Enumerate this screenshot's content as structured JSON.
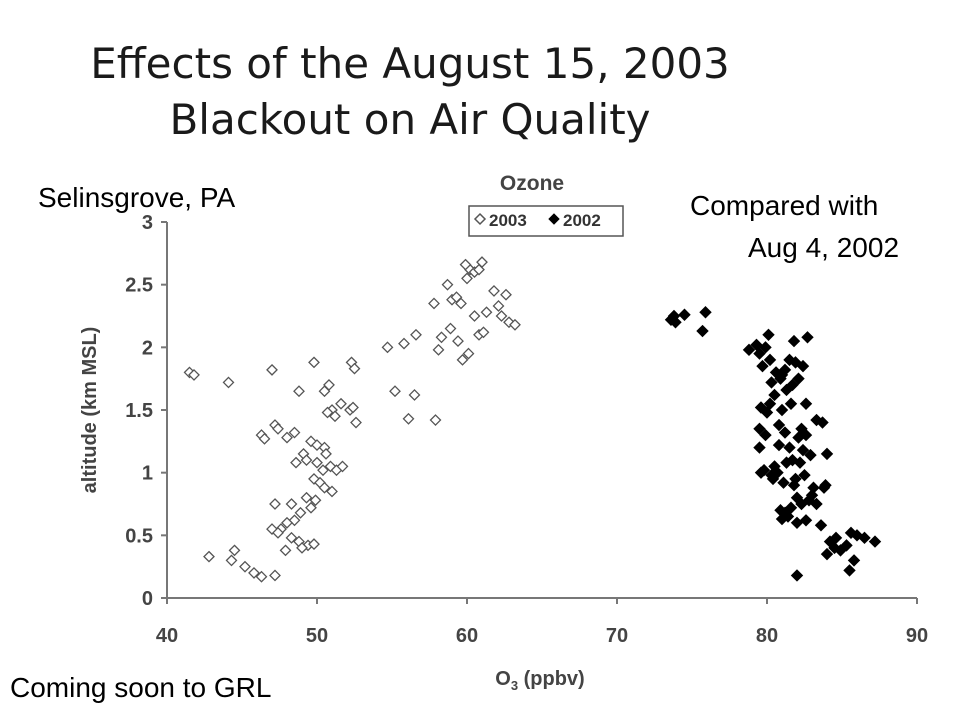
{
  "slide": {
    "title_line1": "Effects of the August 15, 2003",
    "title_line2": "Blackout on Air Quality",
    "location": "Selinsgrove, PA",
    "compare_line1": "Compared with",
    "compare_line2": "Aug 4, 2002",
    "footer": "Coming soon to GRL"
  },
  "chart_data": {
    "type": "scatter",
    "title": "Ozone",
    "xlabel_main": "O",
    "xlabel_sub": "3",
    "xlabel_rest": " (ppbv)",
    "ylabel": "altitude (km MSL)",
    "xlim": [
      40,
      90
    ],
    "ylim": [
      0,
      3
    ],
    "x_ticks": [
      40,
      50,
      60,
      70,
      80,
      90
    ],
    "x_tick_labels": [
      "40",
      "50",
      "60",
      "70",
      "80",
      "90"
    ],
    "y_ticks": [
      0,
      0.5,
      1,
      1.5,
      2,
      2.5,
      3
    ],
    "y_tick_labels": [
      "0",
      "0.5",
      "1",
      "1.5",
      "2",
      "2.5",
      "3"
    ],
    "legend_position": "top",
    "grid": false,
    "series": [
      {
        "name": "2003",
        "marker": "open-diamond",
        "color": "#555555",
        "points": [
          [
            41.5,
            1.8
          ],
          [
            41.8,
            1.78
          ],
          [
            44.1,
            1.72
          ],
          [
            47.0,
            1.82
          ],
          [
            49.8,
            1.88
          ],
          [
            52.3,
            1.88
          ],
          [
            52.5,
            1.83
          ],
          [
            48.8,
            1.65
          ],
          [
            50.5,
            1.65
          ],
          [
            50.8,
            1.7
          ],
          [
            51.0,
            1.5
          ],
          [
            51.2,
            1.45
          ],
          [
            51.6,
            1.55
          ],
          [
            52.2,
            1.5
          ],
          [
            52.4,
            1.52
          ],
          [
            52.6,
            1.4
          ],
          [
            47.2,
            1.38
          ],
          [
            47.4,
            1.35
          ],
          [
            46.3,
            1.3
          ],
          [
            46.5,
            1.27
          ],
          [
            48.0,
            1.28
          ],
          [
            48.5,
            1.32
          ],
          [
            49.6,
            1.25
          ],
          [
            50.0,
            1.22
          ],
          [
            50.5,
            1.2
          ],
          [
            50.6,
            1.15
          ],
          [
            49.1,
            1.15
          ],
          [
            49.3,
            1.1
          ],
          [
            48.6,
            1.08
          ],
          [
            50.0,
            1.08
          ],
          [
            50.4,
            1.02
          ],
          [
            50.9,
            1.05
          ],
          [
            51.3,
            1.02
          ],
          [
            51.7,
            1.05
          ],
          [
            49.8,
            0.95
          ],
          [
            50.2,
            0.92
          ],
          [
            50.5,
            0.88
          ],
          [
            51.0,
            0.85
          ],
          [
            49.3,
            0.8
          ],
          [
            49.9,
            0.78
          ],
          [
            49.6,
            0.72
          ],
          [
            48.9,
            0.68
          ],
          [
            48.3,
            0.75
          ],
          [
            47.2,
            0.75
          ],
          [
            48.5,
            0.62
          ],
          [
            48.0,
            0.6
          ],
          [
            47.6,
            0.55
          ],
          [
            47.0,
            0.55
          ],
          [
            47.4,
            0.52
          ],
          [
            48.3,
            0.48
          ],
          [
            48.8,
            0.45
          ],
          [
            49.4,
            0.42
          ],
          [
            49.0,
            0.4
          ],
          [
            49.8,
            0.43
          ],
          [
            47.9,
            0.38
          ],
          [
            42.8,
            0.33
          ],
          [
            44.5,
            0.38
          ],
          [
            44.3,
            0.3
          ],
          [
            45.2,
            0.25
          ],
          [
            45.8,
            0.2
          ],
          [
            46.3,
            0.17
          ],
          [
            47.2,
            0.18
          ],
          [
            54.7,
            2.0
          ],
          [
            55.8,
            2.03
          ],
          [
            56.6,
            2.1
          ],
          [
            57.8,
            2.35
          ],
          [
            58.1,
            1.98
          ],
          [
            58.3,
            2.08
          ],
          [
            58.9,
            2.15
          ],
          [
            59.4,
            2.05
          ],
          [
            59.7,
            1.9
          ],
          [
            60.1,
            1.95
          ],
          [
            60.8,
            2.1
          ],
          [
            61.1,
            2.12
          ],
          [
            59.0,
            2.38
          ],
          [
            59.6,
            2.35
          ],
          [
            58.7,
            2.5
          ],
          [
            60.0,
            2.55
          ],
          [
            60.2,
            2.62
          ],
          [
            60.5,
            2.6
          ],
          [
            60.8,
            2.62
          ],
          [
            61.0,
            2.68
          ],
          [
            59.9,
            2.66
          ],
          [
            61.3,
            2.28
          ],
          [
            61.8,
            2.45
          ],
          [
            62.1,
            2.33
          ],
          [
            62.3,
            2.25
          ],
          [
            62.6,
            2.42
          ],
          [
            62.8,
            2.2
          ],
          [
            63.2,
            2.18
          ],
          [
            60.5,
            2.25
          ],
          [
            55.2,
            1.65
          ],
          [
            56.5,
            1.62
          ],
          [
            56.1,
            1.43
          ],
          [
            57.9,
            1.42
          ],
          [
            59.3,
            2.4
          ],
          [
            50.7,
            1.48
          ]
        ]
      },
      {
        "name": "2002",
        "marker": "filled-diamond",
        "color": "#000000",
        "points": [
          [
            73.8,
            2.25
          ],
          [
            73.6,
            2.22
          ],
          [
            74.5,
            2.26
          ],
          [
            75.9,
            2.28
          ],
          [
            75.7,
            2.13
          ],
          [
            73.9,
            2.2
          ],
          [
            78.8,
            1.98
          ],
          [
            79.3,
            2.02
          ],
          [
            79.5,
            1.95
          ],
          [
            80.1,
            2.1
          ],
          [
            79.9,
            2.0
          ],
          [
            81.8,
            2.05
          ],
          [
            82.7,
            2.08
          ],
          [
            80.2,
            1.9
          ],
          [
            80.6,
            1.8
          ],
          [
            80.9,
            1.75
          ],
          [
            81.2,
            1.82
          ],
          [
            81.5,
            1.9
          ],
          [
            81.9,
            1.88
          ],
          [
            82.4,
            1.85
          ],
          [
            79.7,
            1.85
          ],
          [
            80.3,
            1.72
          ],
          [
            81.0,
            1.78
          ],
          [
            80.5,
            1.62
          ],
          [
            81.3,
            1.66
          ],
          [
            81.7,
            1.7
          ],
          [
            82.1,
            1.75
          ],
          [
            79.6,
            1.52
          ],
          [
            80.0,
            1.48
          ],
          [
            80.2,
            1.55
          ],
          [
            81.0,
            1.5
          ],
          [
            81.6,
            1.55
          ],
          [
            82.6,
            1.55
          ],
          [
            83.3,
            1.42
          ],
          [
            83.7,
            1.4
          ],
          [
            80.8,
            1.38
          ],
          [
            79.5,
            1.35
          ],
          [
            79.9,
            1.3
          ],
          [
            81.2,
            1.32
          ],
          [
            82.1,
            1.28
          ],
          [
            82.3,
            1.35
          ],
          [
            82.6,
            1.3
          ],
          [
            79.5,
            1.2
          ],
          [
            80.8,
            1.22
          ],
          [
            81.5,
            1.2
          ],
          [
            82.4,
            1.18
          ],
          [
            82.9,
            1.14
          ],
          [
            79.8,
            1.02
          ],
          [
            80.5,
            1.05
          ],
          [
            80.7,
            1.0
          ],
          [
            81.3,
            1.08
          ],
          [
            81.7,
            1.1
          ],
          [
            82.2,
            1.08
          ],
          [
            84.0,
            1.15
          ],
          [
            79.6,
            1.0
          ],
          [
            80.3,
            0.98
          ],
          [
            81.1,
            0.92
          ],
          [
            81.9,
            0.95
          ],
          [
            82.5,
            0.98
          ],
          [
            83.1,
            0.88
          ],
          [
            83.9,
            0.9
          ],
          [
            82.0,
            0.8
          ],
          [
            82.3,
            0.75
          ],
          [
            81.6,
            0.72
          ],
          [
            82.8,
            0.78
          ],
          [
            83.3,
            0.75
          ],
          [
            80.9,
            0.7
          ],
          [
            81.2,
            0.68
          ],
          [
            81.4,
            0.65
          ],
          [
            82.0,
            0.6
          ],
          [
            82.6,
            0.62
          ],
          [
            83.6,
            0.58
          ],
          [
            84.2,
            0.45
          ],
          [
            84.5,
            0.4
          ],
          [
            84.9,
            0.38
          ],
          [
            85.3,
            0.42
          ],
          [
            85.6,
            0.52
          ],
          [
            86.0,
            0.5
          ],
          [
            86.5,
            0.48
          ],
          [
            87.2,
            0.45
          ],
          [
            85.8,
            0.3
          ],
          [
            85.5,
            0.22
          ],
          [
            84.0,
            0.35
          ],
          [
            82.0,
            0.18
          ],
          [
            84.6,
            0.48
          ],
          [
            83.0,
            0.82
          ],
          [
            83.8,
            0.88
          ],
          [
            81.8,
            0.9
          ],
          [
            80.4,
            0.95
          ],
          [
            81.0,
            0.63
          ]
        ]
      }
    ]
  }
}
